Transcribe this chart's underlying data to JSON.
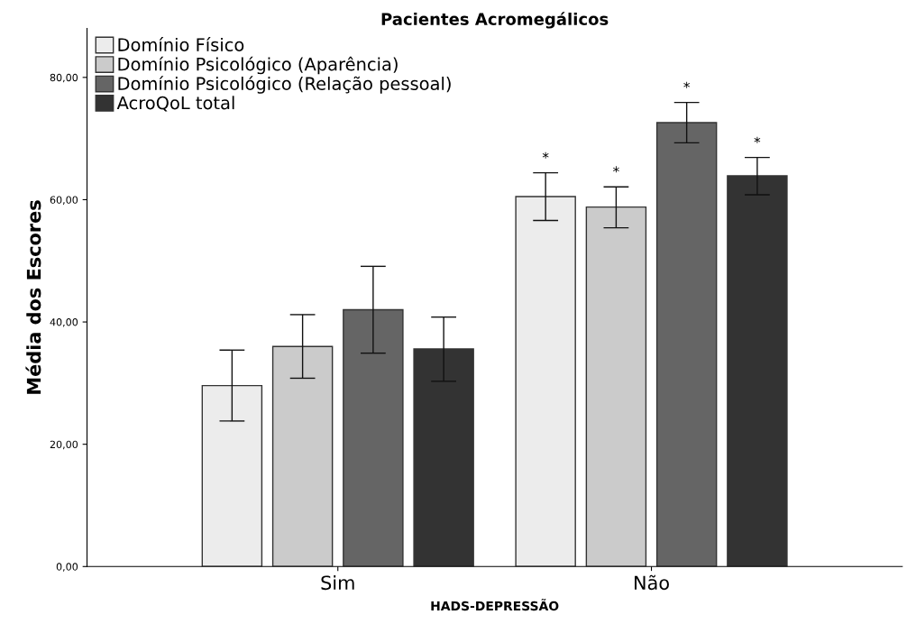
{
  "chart_data": {
    "type": "bar",
    "title": "Pacientes Acromegálicos",
    "xlabel": "HADS-DEPRESSÃO",
    "ylabel": "Média dos Escores",
    "categories": [
      "Sim",
      "Não"
    ],
    "series": [
      {
        "name": "Domínio Físico",
        "color": "#ececec",
        "values": [
          29.6,
          60.5
        ],
        "errors": [
          [
            23.8,
            35.4
          ],
          [
            56.6,
            64.4
          ]
        ],
        "value_labels": [
          null,
          "*"
        ]
      },
      {
        "name": "Domínio Psicológico (Aparência)",
        "color": "#cbcbcb",
        "values": [
          36.0,
          58.8
        ],
        "errors": [
          [
            30.8,
            41.2
          ],
          [
            55.4,
            62.1
          ]
        ],
        "value_labels": [
          null,
          "*"
        ]
      },
      {
        "name": "Domínio Psicológico (Relação pessoal)",
        "color": "#656565",
        "values": [
          42.0,
          72.6
        ],
        "errors": [
          [
            34.9,
            49.1
          ],
          [
            69.3,
            75.9
          ]
        ],
        "value_labels": [
          null,
          "*"
        ]
      },
      {
        "name": "AcroQoL total",
        "color": "#333333",
        "values": [
          35.6,
          63.9
        ],
        "errors": [
          [
            30.3,
            40.8
          ],
          [
            60.8,
            66.9
          ]
        ],
        "value_labels": [
          null,
          "*"
        ]
      }
    ],
    "ylim": [
      0,
      88
    ],
    "yticks": [
      {
        "value": 0,
        "label": "0,00"
      },
      {
        "value": 20,
        "label": "20,00"
      },
      {
        "value": 40,
        "label": "40,00"
      },
      {
        "value": 60,
        "label": "60,00"
      },
      {
        "value": 80,
        "label": "80,00"
      }
    ],
    "grid": false,
    "legend": "top left"
  }
}
